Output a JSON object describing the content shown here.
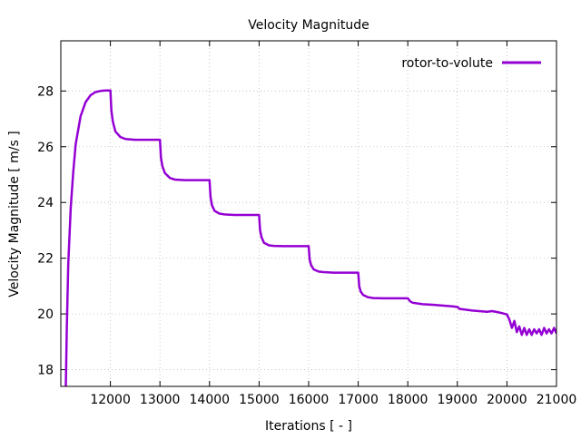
{
  "chart_data": {
    "type": "line",
    "title": "Velocity Magnitude",
    "xlabel": "Iterations [ - ]",
    "ylabel": "Velocity Magnitude [ m/s ]",
    "xlim": [
      11000,
      21000
    ],
    "ylim": [
      17.4,
      29.8
    ],
    "xticks": [
      12000,
      13000,
      14000,
      15000,
      16000,
      17000,
      18000,
      19000,
      20000,
      21000
    ],
    "yticks": [
      18,
      20,
      22,
      24,
      26,
      28
    ],
    "grid": true,
    "legend_position": "top-right",
    "series": [
      {
        "name": "rotor-to-volute",
        "color": "#9400d3",
        "x": [
          11100,
          11120,
          11150,
          11200,
          11250,
          11300,
          11400,
          11500,
          11600,
          11700,
          11800,
          11900,
          12000,
          12020,
          12050,
          12100,
          12200,
          12300,
          12500,
          12700,
          12900,
          13000,
          13020,
          13050,
          13100,
          13200,
          13300,
          13500,
          13700,
          13900,
          14000,
          14020,
          14050,
          14100,
          14200,
          14300,
          14500,
          14700,
          14900,
          15000,
          15020,
          15050,
          15100,
          15200,
          15300,
          15500,
          15700,
          15900,
          16000,
          16020,
          16050,
          16100,
          16200,
          16300,
          16500,
          16700,
          16900,
          17000,
          17020,
          17050,
          17100,
          17200,
          17300,
          17500,
          17700,
          17900,
          18000,
          18050,
          18100,
          18300,
          18500,
          18700,
          18900,
          19000,
          19050,
          19300,
          19600,
          19700,
          19800,
          19900,
          20000,
          20050,
          20100,
          20150,
          20200,
          20250,
          20300,
          20350,
          20400,
          20450,
          20500,
          20550,
          20600,
          20650,
          20700,
          20750,
          20800,
          20850,
          20900,
          20950,
          21000
        ],
        "values": [
          17.4,
          19.5,
          21.8,
          23.8,
          25.1,
          26.1,
          27.1,
          27.6,
          27.85,
          27.96,
          28.0,
          28.02,
          28.02,
          27.3,
          26.9,
          26.55,
          26.35,
          26.28,
          26.25,
          26.25,
          26.25,
          26.25,
          25.6,
          25.3,
          25.05,
          24.88,
          24.82,
          24.8,
          24.8,
          24.8,
          24.8,
          24.2,
          23.9,
          23.7,
          23.6,
          23.57,
          23.55,
          23.55,
          23.55,
          23.55,
          23.0,
          22.75,
          22.55,
          22.46,
          22.44,
          22.43,
          22.43,
          22.43,
          22.43,
          21.95,
          21.75,
          21.6,
          21.52,
          21.5,
          21.48,
          21.48,
          21.48,
          21.48,
          21.0,
          20.8,
          20.68,
          20.6,
          20.57,
          20.56,
          20.56,
          20.56,
          20.56,
          20.45,
          20.4,
          20.35,
          20.33,
          20.3,
          20.27,
          20.25,
          20.18,
          20.12,
          20.08,
          20.1,
          20.07,
          20.03,
          19.98,
          19.8,
          19.5,
          19.75,
          19.35,
          19.55,
          19.25,
          19.5,
          19.25,
          19.45,
          19.25,
          19.45,
          19.3,
          19.45,
          19.25,
          19.5,
          19.3,
          19.45,
          19.3,
          19.5,
          19.3
        ]
      }
    ]
  }
}
